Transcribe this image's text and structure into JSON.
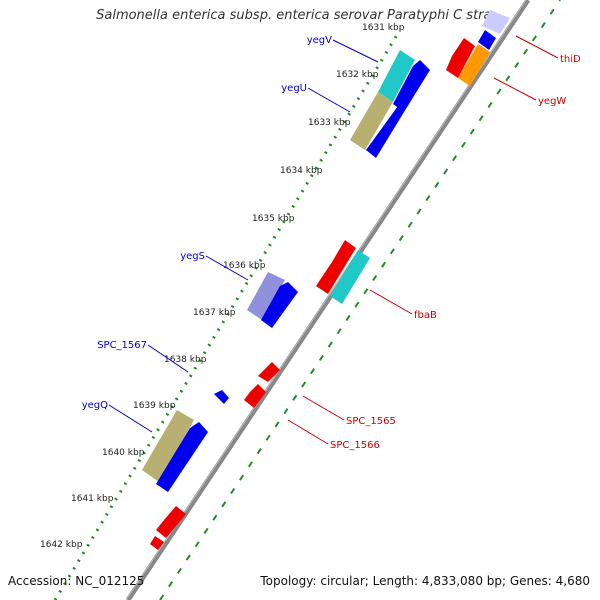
{
  "title": "Salmonella enterica subsp. enterica serovar Paratyphi C stra...",
  "footer": {
    "accession": "Accession: NC_012125",
    "summary": "Topology: circular; Length: 4,833,080 bp; Genes: 4,680"
  },
  "ticks": [
    "1631 kbp",
    "1632 kbp",
    "1633 kbp",
    "1634 kbp",
    "1635 kbp",
    "1636 kbp",
    "1637 kbp",
    "1638 kbp",
    "1639 kbp",
    "1640 kbp",
    "1641 kbp",
    "1642 kbp"
  ],
  "genes_left": [
    "yegV",
    "yegU",
    "yegS",
    "SPC_1567",
    "yegQ"
  ],
  "genes_right": [
    "thiD",
    "yegW",
    "fbaB",
    "SPC_1565",
    "SPC_1566"
  ],
  "colors": {
    "backbone": "#888888",
    "dots": "#228b22",
    "forward_cds": "#0000ee",
    "reverse_cds": "#ee0000",
    "label_forward": "#0000cc",
    "label_reverse": "#cc0000",
    "cyan_feature": "#20c8c8",
    "khaki_feature": "#b8b070",
    "orange_feature": "#ff9900",
    "lavender_feature": "#9090dd"
  }
}
